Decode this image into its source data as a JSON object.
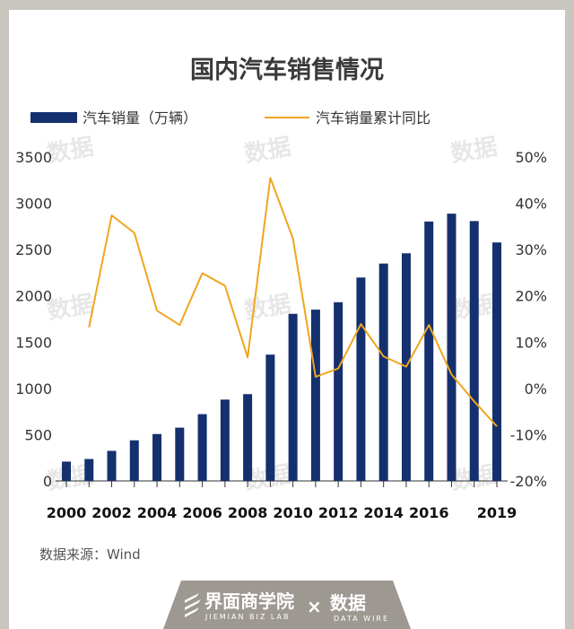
{
  "chart_data": {
    "type": "bar+line",
    "title": "国内汽车销售情况",
    "series": [
      {
        "name": "汽车销量（万辆）",
        "type": "bar",
        "axis": "left",
        "color": "#14306e",
        "values": [
          209,
          237,
          325,
          439,
          507,
          576,
          722,
          879,
          938,
          1365,
          1806,
          1851,
          1931,
          2198,
          2349,
          2460,
          2803,
          2888,
          2808,
          2577
        ]
      },
      {
        "name": "汽车销量累计同比",
        "type": "line",
        "axis": "right",
        "color": "#f0a51e",
        "values": [
          null,
          13.2,
          37.4,
          33.6,
          16.8,
          13.7,
          24.9,
          22.2,
          6.7,
          45.5,
          32.4,
          2.5,
          4.3,
          13.9,
          6.9,
          4.7,
          13.7,
          3.0,
          -2.8,
          -8.2
        ]
      }
    ],
    "x": [
      2000,
      2001,
      2002,
      2003,
      2004,
      2005,
      2006,
      2007,
      2008,
      2009,
      2010,
      2011,
      2012,
      2013,
      2014,
      2015,
      2016,
      2017,
      2018,
      2019
    ],
    "x_tick_labels": [
      "2000",
      "2002",
      "2004",
      "2006",
      "2008",
      "2010",
      "2012",
      "2014",
      "2016",
      "2019"
    ],
    "y_left": {
      "ticks": [
        "0",
        "500",
        "1000",
        "1500",
        "2000",
        "2500",
        "3000",
        "3500"
      ],
      "ylim": [
        0,
        3500
      ]
    },
    "y_right": {
      "ticks": [
        "-20%",
        "-10%",
        "0%",
        "10%",
        "20%",
        "30%",
        "40%",
        "50%"
      ],
      "ylim": [
        -20,
        50
      ]
    },
    "legend_position": "top-left",
    "grid": false
  },
  "source": "数据来源：Wind",
  "brand": {
    "logo_text": "界面商学院",
    "logo_sub": "JIEMIAN BIZ LAB",
    "times": "×",
    "partner_text": "数据",
    "partner_sub": "DATA WIRE"
  },
  "watermark": "数据"
}
